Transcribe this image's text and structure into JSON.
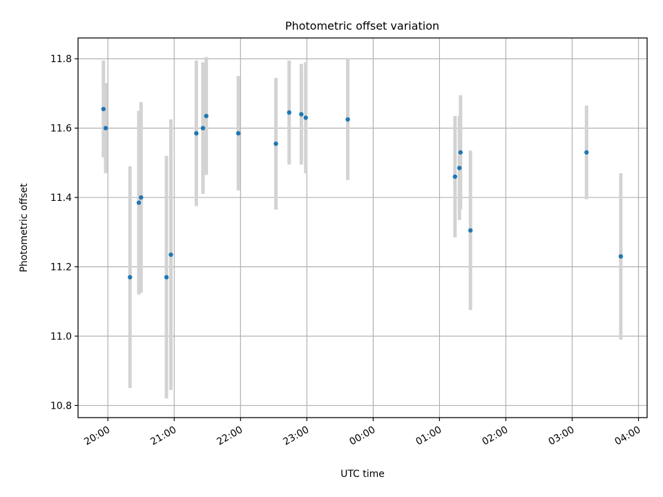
{
  "chart_data": {
    "type": "scatter",
    "title": "Photometric offset variation",
    "xlabel": "UTC time",
    "ylabel": "Photometric offset",
    "x_axis": "time",
    "x_ticks": [
      "20:00",
      "21:00",
      "22:00",
      "23:00",
      "00:00",
      "01:00",
      "02:00",
      "03:00",
      "04:00"
    ],
    "x_tick_hours": [
      20,
      21,
      22,
      23,
      24,
      25,
      26,
      27,
      28
    ],
    "xlim_hours": [
      19.55,
      28.13
    ],
    "y_ticks": [
      "10.8",
      "11.0",
      "11.2",
      "11.4",
      "11.6",
      "11.8"
    ],
    "y_tick_values": [
      10.8,
      11.0,
      11.2,
      11.4,
      11.6,
      11.8
    ],
    "ylim": [
      10.765,
      11.86
    ],
    "grid": true,
    "legend": "none",
    "colors": {
      "point": "#1f77b4",
      "errorbar": "#d3d3d3",
      "grid": "#b0b0b0"
    },
    "points": [
      {
        "time": "19:56",
        "value": 11.655,
        "err": 0.14
      },
      {
        "time": "19:58",
        "value": 11.6,
        "err": 0.13
      },
      {
        "time": "20:20",
        "value": 11.17,
        "err": 0.32
      },
      {
        "time": "20:28",
        "value": 11.385,
        "err": 0.265
      },
      {
        "time": "20:30",
        "value": 11.4,
        "err": 0.275
      },
      {
        "time": "20:53",
        "value": 11.17,
        "err": 0.35
      },
      {
        "time": "20:57",
        "value": 11.235,
        "err": 0.39
      },
      {
        "time": "21:20",
        "value": 11.585,
        "err": 0.21
      },
      {
        "time": "21:26",
        "value": 11.6,
        "err": 0.19
      },
      {
        "time": "21:29",
        "value": 11.635,
        "err": 0.17
      },
      {
        "time": "21:58",
        "value": 11.585,
        "err": 0.165
      },
      {
        "time": "22:32",
        "value": 11.555,
        "err": 0.19
      },
      {
        "time": "22:44",
        "value": 11.645,
        "err": 0.15
      },
      {
        "time": "22:55",
        "value": 11.64,
        "err": 0.145
      },
      {
        "time": "22:59",
        "value": 11.63,
        "err": 0.16
      },
      {
        "time": "23:37",
        "value": 11.625,
        "err": 0.175
      },
      {
        "time": "01:14",
        "value": 11.46,
        "err": 0.175
      },
      {
        "time": "01:18",
        "value": 11.485,
        "err": 0.15
      },
      {
        "time": "01:19",
        "value": 11.53,
        "err": 0.165
      },
      {
        "time": "01:28",
        "value": 11.305,
        "err": 0.23
      },
      {
        "time": "03:13",
        "value": 11.53,
        "err": 0.135
      },
      {
        "time": "03:44",
        "value": 11.23,
        "err": 0.24
      }
    ]
  }
}
